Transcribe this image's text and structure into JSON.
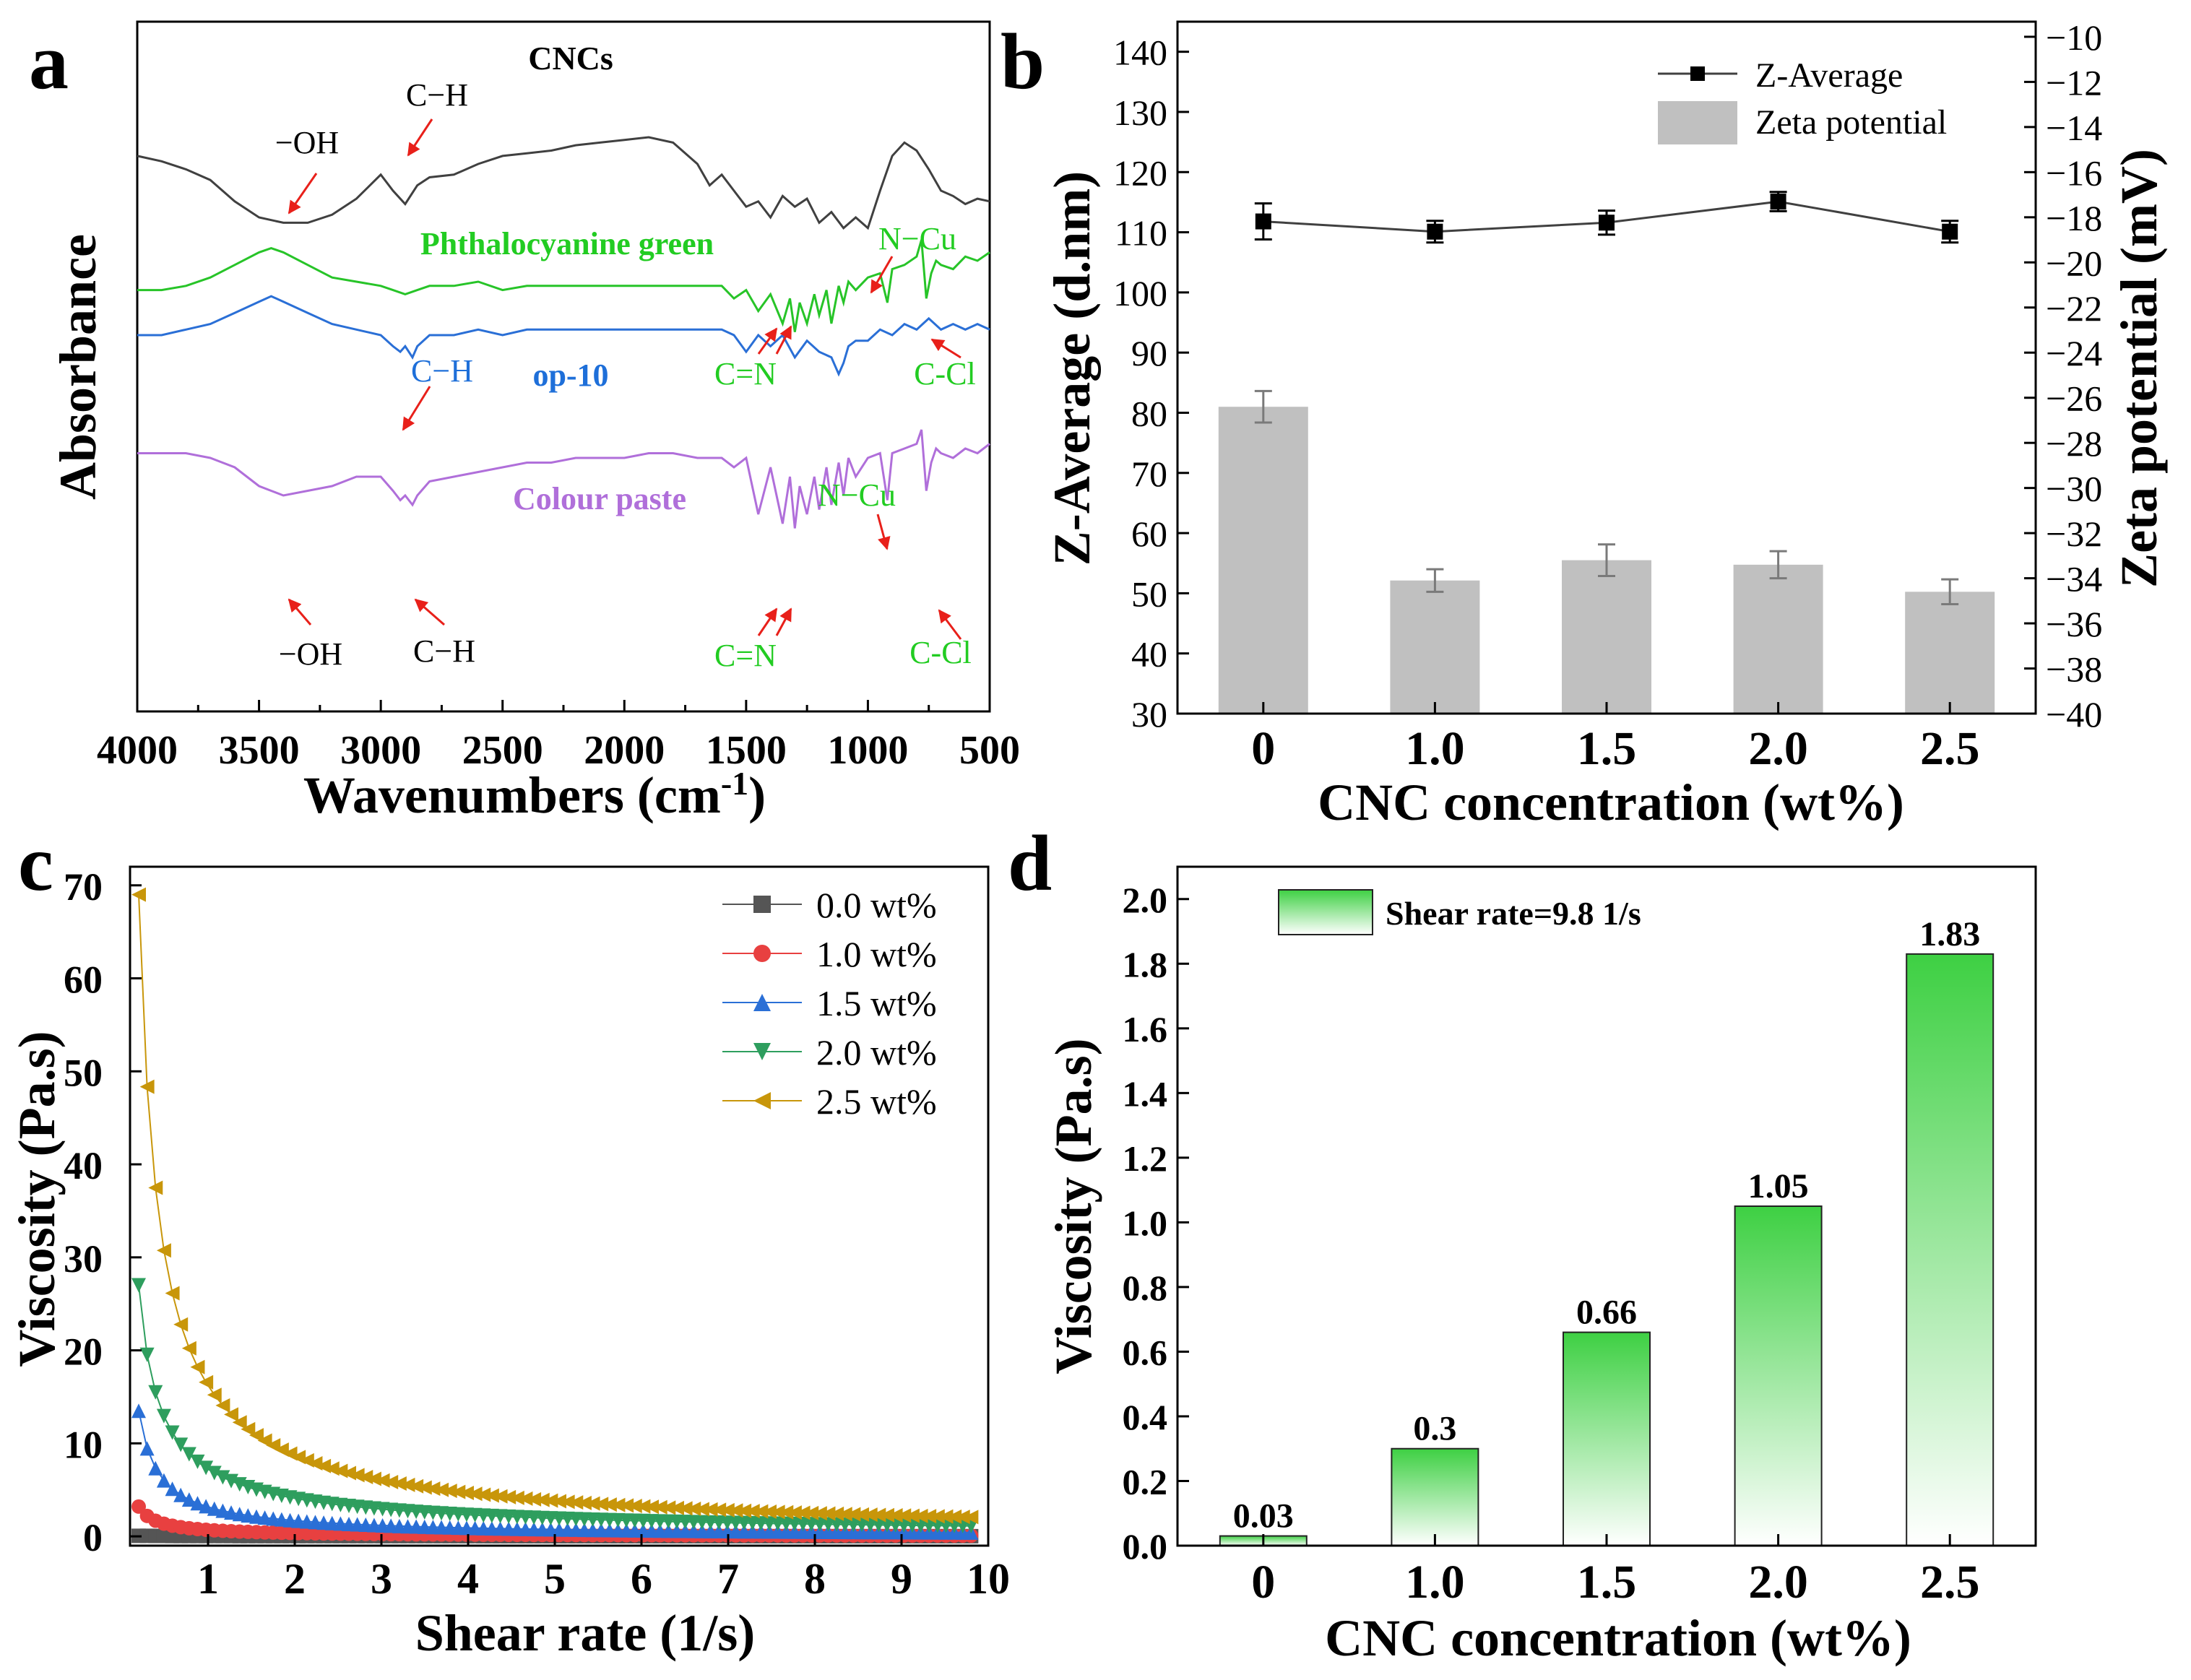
{
  "figure": {
    "panel_labels": [
      "a",
      "b",
      "c",
      "d"
    ]
  },
  "chart_data": [
    {
      "id": "a",
      "type": "line",
      "title": "",
      "xlabel": "Wavenumbers (cm",
      "xlabel_sup": "-1",
      "xlabel_tail": ")",
      "ylabel": "Absorbance",
      "xlim": [
        4000,
        500
      ],
      "xticks": [
        4000,
        3500,
        3000,
        2500,
        2000,
        1500,
        1000,
        500
      ],
      "series": [
        {
          "name": "CNCs",
          "color": "#404040",
          "label_color": "#000000",
          "x": [
            4000,
            3900,
            3800,
            3700,
            3600,
            3500,
            3400,
            3300,
            3200,
            3100,
            3000,
            2950,
            2900,
            2850,
            2800,
            2700,
            2600,
            2500,
            2400,
            2300,
            2200,
            2100,
            2000,
            1900,
            1800,
            1700,
            1650,
            1600,
            1550,
            1500,
            1450,
            1400,
            1350,
            1300,
            1250,
            1200,
            1150,
            1100,
            1050,
            1000,
            950,
            900,
            850,
            800,
            750,
            700,
            650,
            600,
            550,
            500
          ],
          "y": [
            0.93,
            0.91,
            0.88,
            0.84,
            0.76,
            0.7,
            0.68,
            0.68,
            0.71,
            0.77,
            0.86,
            0.8,
            0.75,
            0.82,
            0.85,
            0.86,
            0.9,
            0.93,
            0.94,
            0.95,
            0.97,
            0.98,
            0.99,
            1.0,
            0.98,
            0.9,
            0.82,
            0.86,
            0.8,
            0.74,
            0.76,
            0.7,
            0.78,
            0.74,
            0.77,
            0.68,
            0.72,
            0.66,
            0.7,
            0.66,
            0.8,
            0.93,
            0.98,
            0.95,
            0.88,
            0.8,
            0.78,
            0.75,
            0.77,
            0.76
          ]
        },
        {
          "name": "Phthalocyanine green",
          "color": "#27c428",
          "label_color": "#22cc22",
          "x": [
            4000,
            3900,
            3800,
            3700,
            3600,
            3500,
            3450,
            3400,
            3300,
            3200,
            3100,
            3000,
            2950,
            2900,
            2850,
            2800,
            2700,
            2600,
            2500,
            2400,
            2300,
            2200,
            2100,
            2000,
            1900,
            1800,
            1700,
            1600,
            1550,
            1500,
            1450,
            1400,
            1350,
            1320,
            1300,
            1280,
            1250,
            1220,
            1200,
            1170,
            1150,
            1120,
            1100,
            1080,
            1050,
            1000,
            950,
            920,
            900,
            850,
            800,
            780,
            760,
            740,
            720,
            700,
            650,
            600,
            550,
            500
          ],
          "y": [
            0.48,
            0.48,
            0.49,
            0.51,
            0.54,
            0.57,
            0.58,
            0.57,
            0.54,
            0.51,
            0.5,
            0.49,
            0.48,
            0.47,
            0.48,
            0.49,
            0.49,
            0.5,
            0.48,
            0.49,
            0.49,
            0.49,
            0.49,
            0.49,
            0.49,
            0.49,
            0.49,
            0.49,
            0.46,
            0.48,
            0.43,
            0.47,
            0.4,
            0.46,
            0.38,
            0.45,
            0.4,
            0.47,
            0.42,
            0.48,
            0.4,
            0.49,
            0.45,
            0.5,
            0.48,
            0.51,
            0.52,
            0.45,
            0.53,
            0.54,
            0.56,
            0.6,
            0.46,
            0.52,
            0.55,
            0.54,
            0.53,
            0.56,
            0.55,
            0.57
          ]
        },
        {
          "name": "op-10",
          "color": "#2a6fd6",
          "label_color": "#1e6fd9",
          "x": [
            4000,
            3900,
            3800,
            3700,
            3600,
            3500,
            3450,
            3400,
            3300,
            3200,
            3100,
            3000,
            2950,
            2920,
            2900,
            2870,
            2850,
            2800,
            2700,
            2600,
            2500,
            2400,
            2300,
            2200,
            2100,
            2000,
            1900,
            1800,
            1700,
            1600,
            1550,
            1500,
            1450,
            1400,
            1350,
            1300,
            1250,
            1200,
            1150,
            1120,
            1100,
            1080,
            1050,
            1000,
            950,
            900,
            850,
            800,
            750,
            700,
            650,
            600,
            550,
            500
          ],
          "y": [
            0.3,
            0.3,
            0.31,
            0.32,
            0.34,
            0.36,
            0.37,
            0.36,
            0.34,
            0.32,
            0.31,
            0.3,
            0.28,
            0.27,
            0.28,
            0.26,
            0.28,
            0.3,
            0.3,
            0.31,
            0.3,
            0.31,
            0.31,
            0.31,
            0.31,
            0.31,
            0.31,
            0.31,
            0.31,
            0.31,
            0.3,
            0.27,
            0.3,
            0.28,
            0.3,
            0.26,
            0.29,
            0.27,
            0.26,
            0.23,
            0.25,
            0.28,
            0.29,
            0.29,
            0.31,
            0.3,
            0.32,
            0.31,
            0.33,
            0.31,
            0.32,
            0.31,
            0.32,
            0.31
          ]
        },
        {
          "name": "Colour paste",
          "color": "#b06fda",
          "label_color": "#b06fda",
          "x": [
            4000,
            3900,
            3800,
            3700,
            3600,
            3500,
            3450,
            3400,
            3300,
            3200,
            3100,
            3000,
            2950,
            2920,
            2900,
            2870,
            2850,
            2800,
            2700,
            2600,
            2500,
            2400,
            2300,
            2200,
            2100,
            2000,
            1900,
            1800,
            1700,
            1600,
            1550,
            1500,
            1450,
            1400,
            1350,
            1320,
            1300,
            1280,
            1250,
            1220,
            1200,
            1170,
            1150,
            1120,
            1100,
            1080,
            1050,
            1000,
            950,
            920,
            900,
            850,
            800,
            780,
            760,
            740,
            720,
            700,
            650,
            600,
            550,
            500
          ],
          "y": [
            0.15,
            0.15,
            0.15,
            0.14,
            0.12,
            0.08,
            0.07,
            0.06,
            0.07,
            0.08,
            0.1,
            0.1,
            0.07,
            0.05,
            0.06,
            0.04,
            0.06,
            0.09,
            0.1,
            0.11,
            0.12,
            0.13,
            0.13,
            0.14,
            0.14,
            0.14,
            0.15,
            0.15,
            0.14,
            0.14,
            0.12,
            0.14,
            0.02,
            0.12,
            0.0,
            0.1,
            -0.01,
            0.08,
            0.02,
            0.1,
            0.03,
            0.12,
            0.04,
            0.13,
            0.06,
            0.14,
            0.1,
            0.14,
            0.15,
            0.05,
            0.15,
            0.16,
            0.17,
            0.2,
            0.07,
            0.13,
            0.16,
            0.15,
            0.14,
            0.16,
            0.15,
            0.17
          ]
        }
      ],
      "annotations": [
        {
          "text": "CNCs",
          "color": "#000000"
        },
        {
          "text": "−OH",
          "color": "#000000"
        },
        {
          "text": "C−H",
          "color": "#000000"
        },
        {
          "text": "Phthalocyanine green",
          "color": "#22cc22"
        },
        {
          "text": "N−Cu",
          "color": "#22cc22"
        },
        {
          "text": "C=N",
          "color": "#22cc22"
        },
        {
          "text": "C-Cl",
          "color": "#22cc22"
        },
        {
          "text": "C−H",
          "color": "#1e6fd9"
        },
        {
          "text": "op-10",
          "color": "#1e6fd9"
        },
        {
          "text": "Colour paste",
          "color": "#b06fda"
        },
        {
          "text": "N−Cu",
          "color": "#22cc22"
        },
        {
          "text": "−OH",
          "color": "#000000"
        },
        {
          "text": "C−H",
          "color": "#000000"
        },
        {
          "text": "C=N",
          "color": "#22cc22"
        },
        {
          "text": "C-Cl",
          "color": "#22cc22"
        }
      ]
    },
    {
      "id": "b",
      "type": "bar",
      "xlabel": "CNC concentration (wt%)",
      "ylabel": "Z-Average (d.nm)",
      "ylabel_right": "Zeta potential (mV)",
      "categories": [
        "0",
        "1.0",
        "1.5",
        "2.0",
        "2.5"
      ],
      "ylim": [
        30,
        145
      ],
      "yticks": [
        30,
        40,
        50,
        60,
        70,
        80,
        90,
        100,
        110,
        120,
        130,
        140
      ],
      "ylim_right": [
        -40,
        -9.33
      ],
      "yticks_right": [
        -40,
        -38,
        -36,
        -34,
        -32,
        -30,
        -28,
        -26,
        -24,
        -22,
        -20,
        -18,
        -16,
        -14,
        -12,
        -10
      ],
      "series": [
        {
          "name": "Z-Average",
          "type": "line",
          "axis": "left",
          "color": "#404040",
          "values": [
            111.8,
            110.1,
            111.6,
            115.1,
            110.1
          ],
          "errors": [
            3.0,
            1.8,
            2.0,
            1.6,
            1.8
          ]
        },
        {
          "name": "Zeta potential",
          "type": "bar",
          "axis": "right",
          "color": "#c0c0c0",
          "values": [
            -26.4,
            -34.1,
            -33.2,
            -33.4,
            -34.6
          ],
          "errors": [
            0.7,
            0.5,
            0.7,
            0.6,
            0.55
          ]
        }
      ],
      "legend": [
        "Z-Average",
        "Zeta potential"
      ],
      "legend_position": "top-right"
    },
    {
      "id": "c",
      "type": "scatter",
      "xlabel": "Shear rate (1/s)",
      "ylabel": "Viscosity (Pa.s)",
      "xlim": [
        0.1,
        10
      ],
      "ylim": [
        -1,
        72
      ],
      "xticks": [
        1,
        2,
        3,
        4,
        5,
        6,
        7,
        8,
        9,
        10
      ],
      "yticks": [
        0,
        10,
        20,
        30,
        40,
        50,
        60,
        70
      ],
      "series": [
        {
          "name": "0.0 wt%",
          "marker": "square",
          "color": "#555555",
          "x0": 0.2,
          "y0": 0.06,
          "exponent": 0.3
        },
        {
          "name": "1.0 wt%",
          "marker": "circle",
          "color": "#e84040",
          "x0": 0.2,
          "y0": 3.2,
          "exponent": 0.95
        },
        {
          "name": "1.5 wt%",
          "marker": "triangle-up",
          "color": "#2a6fd6",
          "x0": 0.2,
          "y0": 13.5,
          "exponent": 0.9
        },
        {
          "name": "2.0 wt%",
          "marker": "triangle-down",
          "color": "#2e9e5e",
          "x0": 0.2,
          "y0": 27.0,
          "exponent": 0.82
        },
        {
          "name": "2.5 wt%",
          "marker": "triangle-left",
          "color": "#c8960a",
          "x0": 0.2,
          "y0": 69.0,
          "exponent": 0.9
        }
      ],
      "legend_position": "top-right"
    },
    {
      "id": "d",
      "type": "bar",
      "xlabel": "CNC concentration (wt%)",
      "ylabel": "Viscosity (Pa.s)",
      "categories": [
        "0",
        "1.0",
        "1.5",
        "2.0",
        "2.5"
      ],
      "values": [
        0.03,
        0.3,
        0.66,
        1.05,
        1.83
      ],
      "value_labels": [
        "0.03",
        "0.3",
        "0.66",
        "1.05",
        "1.83"
      ],
      "ylim": [
        0,
        2.1
      ],
      "yticks": [
        "0.0",
        "0.2",
        "0.4",
        "0.6",
        "0.8",
        "1.0",
        "1.2",
        "1.4",
        "1.6",
        "1.8",
        "2.0"
      ],
      "legend": [
        "Shear rate=9.8 1/s"
      ],
      "legend_position": "top-left",
      "bar_color": "#3ed043"
    }
  ]
}
